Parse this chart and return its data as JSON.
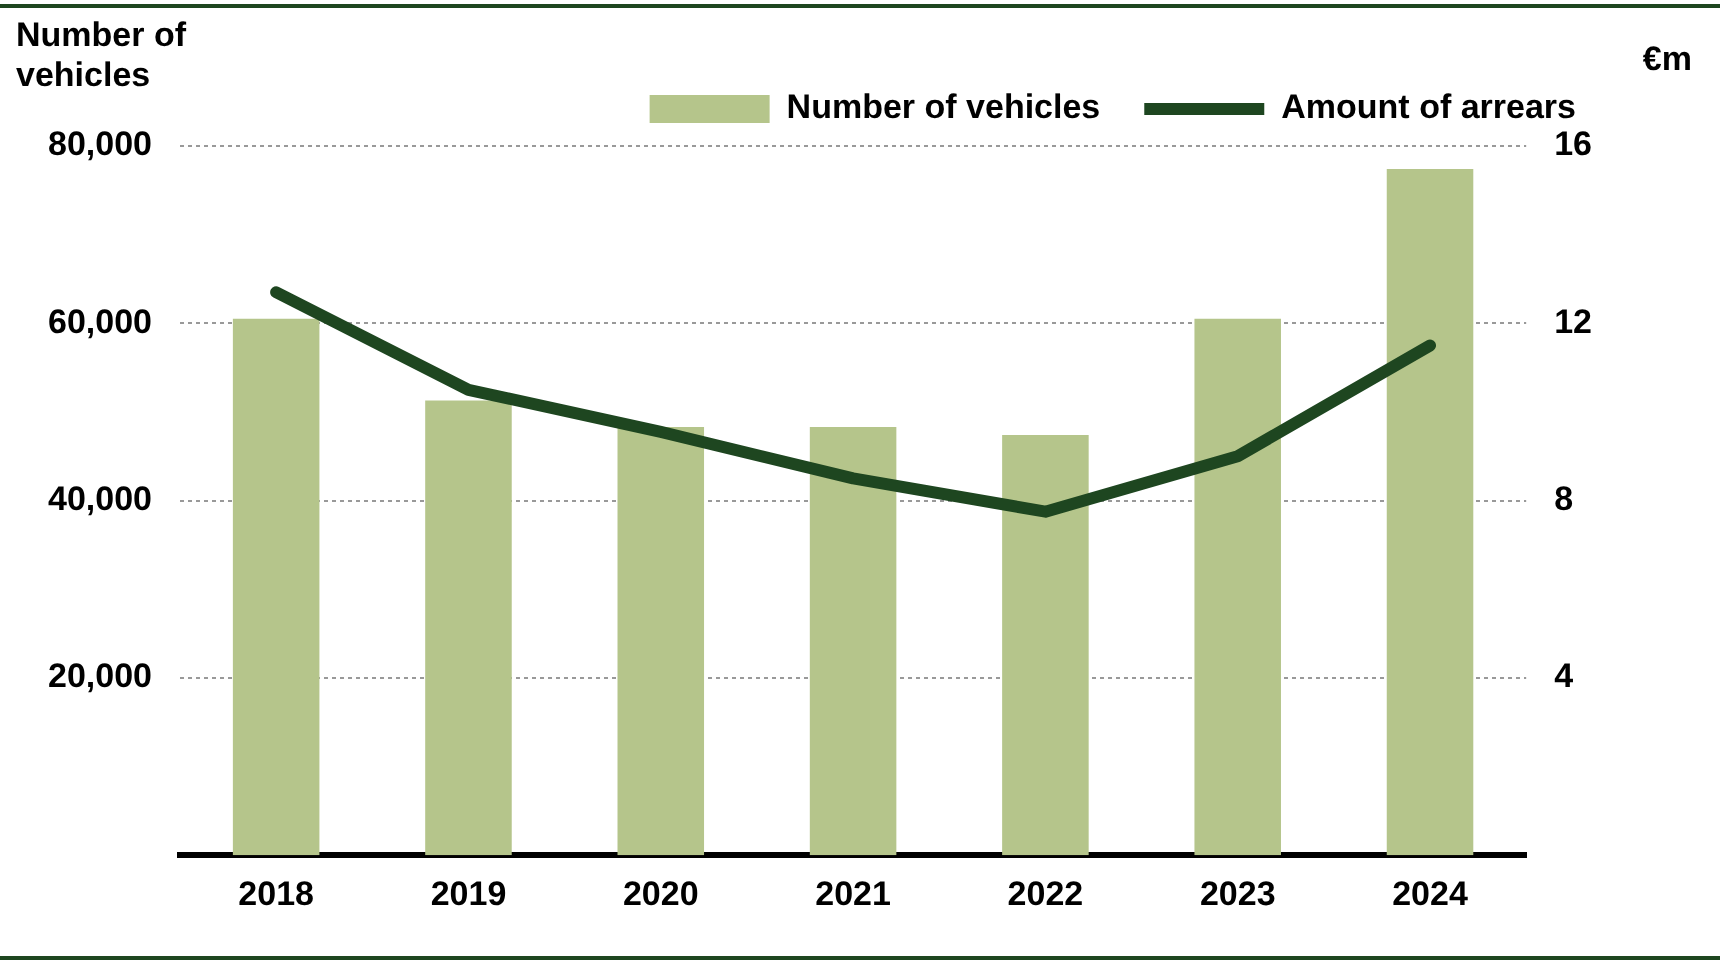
{
  "chart_data": {
    "type": "bar",
    "ylabel": "Number of vehicles",
    "y2label": "€m",
    "categories": [
      "2018",
      "2019",
      "2020",
      "2021",
      "2022",
      "2023",
      "2024"
    ],
    "series": [
      {
        "name": "Number of vehicles",
        "color": "#b5c58b",
        "values": [
          60500,
          51300,
          48300,
          48300,
          47400,
          60500,
          77400
        ]
      },
      {
        "name": "Amount of arrears",
        "type": "line",
        "axis": "y2",
        "color": "#1e4620",
        "values": [
          12.7,
          10.5,
          9.55,
          8.5,
          7.75,
          9.0,
          11.5
        ]
      }
    ],
    "ylim": [
      0,
      80000
    ],
    "yticks": [
      {
        "value": 20000,
        "label": "20,000"
      },
      {
        "value": 40000,
        "label": "40,000"
      },
      {
        "value": 60000,
        "label": "60,000"
      },
      {
        "value": 80000,
        "label": "80,000"
      }
    ],
    "y2lim": [
      0,
      16
    ],
    "y2ticks": [
      4,
      8,
      12,
      16
    ],
    "grid": "y",
    "legend": "top right",
    "marker": "none",
    "line_style": "solid"
  }
}
